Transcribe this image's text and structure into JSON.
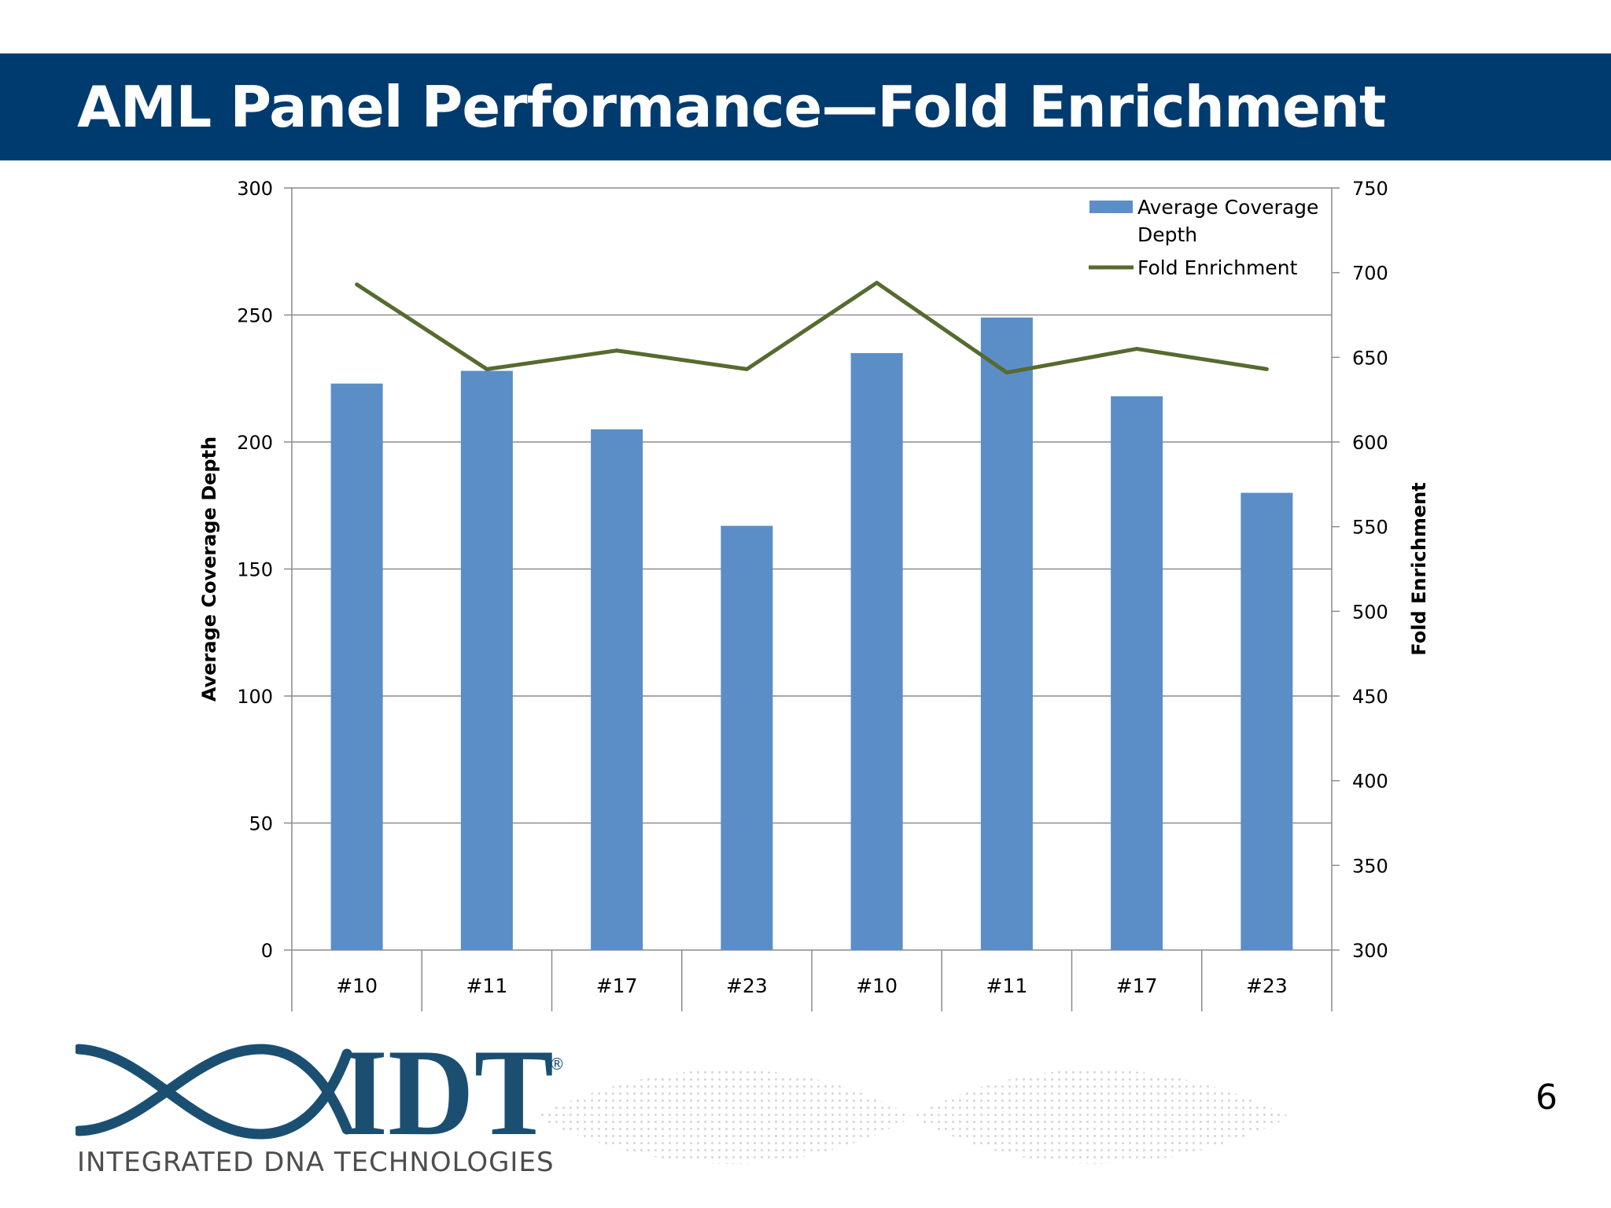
{
  "slide": {
    "title": "AML Panel Performance—Fold Enrichment",
    "page_number": "6",
    "logo_text": "IDT",
    "logo_registered": "®",
    "logo_tagline": "INTEGRATED DNA TECHNOLOGIES"
  },
  "colors": {
    "title_bar": "#003b6f",
    "bar": "#5b8ec6",
    "line": "#556b2f",
    "logo": "#1b4f72"
  },
  "chart_data": {
    "type": "bar",
    "combo": "bar+line (dual axis)",
    "title": "",
    "categories": [
      "#10",
      "#11",
      "#17",
      "#23",
      "#10",
      "#11",
      "#17",
      "#23"
    ],
    "xlabel": "",
    "ylabel": "Average Coverage Depth",
    "y2label": "Fold Enrichment",
    "ylim": [
      0,
      300
    ],
    "yticks": [
      0,
      50,
      100,
      150,
      200,
      250,
      300
    ],
    "y2lim": [
      300,
      750
    ],
    "y2ticks": [
      300,
      350,
      400,
      450,
      500,
      550,
      600,
      650,
      700,
      750
    ],
    "grid": true,
    "legend_position": "top-right",
    "series": [
      {
        "name": "Average Coverage Depth",
        "type": "bar",
        "axis": "left",
        "values": [
          223,
          228,
          205,
          167,
          235,
          249,
          218,
          180
        ]
      },
      {
        "name": "Fold Enrichment",
        "type": "line",
        "axis": "right",
        "values": [
          693,
          643,
          654,
          643,
          694,
          641,
          655,
          643
        ]
      }
    ]
  }
}
